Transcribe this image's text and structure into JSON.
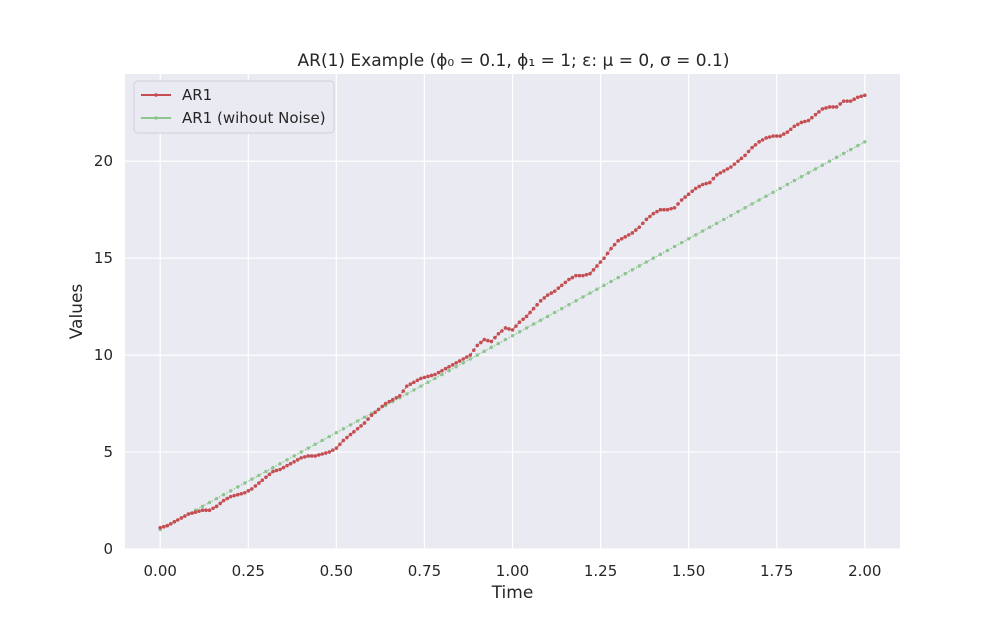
{
  "chart_data": {
    "type": "line",
    "title": "AR(1) Example (ϕ₀ = 0.1, ϕ₁ = 1; ε: μ = 0, σ = 0.1)",
    "xlabel": "Time",
    "ylabel": "Values",
    "xlim": [
      -0.1,
      2.1
    ],
    "ylim": [
      0,
      24.5
    ],
    "xticks": [
      "0.00",
      "0.25",
      "0.50",
      "0.75",
      "1.00",
      "1.25",
      "1.50",
      "1.75",
      "2.00"
    ],
    "yticks": [
      "0",
      "5",
      "10",
      "15",
      "20"
    ],
    "grid": true,
    "legend_position": "top-left",
    "colors": {
      "background": "#eaeaf2",
      "grid": "#ffffff",
      "ar1": "#c44e52",
      "ar1_no_noise": "#8dc58f"
    },
    "series": [
      {
        "name": "AR1",
        "color": "#c44e52",
        "x": [
          0.0,
          0.02,
          0.04,
          0.06,
          0.08,
          0.1,
          0.12,
          0.14,
          0.16,
          0.18,
          0.2,
          0.22,
          0.24,
          0.26,
          0.28,
          0.3,
          0.32,
          0.34,
          0.36,
          0.38,
          0.4,
          0.42,
          0.44,
          0.46,
          0.48,
          0.5,
          0.52,
          0.54,
          0.56,
          0.58,
          0.6,
          0.62,
          0.64,
          0.66,
          0.68,
          0.7,
          0.72,
          0.74,
          0.76,
          0.78,
          0.8,
          0.82,
          0.84,
          0.86,
          0.88,
          0.9,
          0.92,
          0.94,
          0.96,
          0.98,
          1.0,
          1.02,
          1.04,
          1.06,
          1.08,
          1.1,
          1.12,
          1.14,
          1.16,
          1.18,
          1.2,
          1.22,
          1.24,
          1.26,
          1.28,
          1.3,
          1.32,
          1.34,
          1.36,
          1.38,
          1.4,
          1.42,
          1.44,
          1.46,
          1.48,
          1.5,
          1.52,
          1.54,
          1.56,
          1.58,
          1.6,
          1.62,
          1.64,
          1.66,
          1.68,
          1.7,
          1.72,
          1.74,
          1.76,
          1.78,
          1.8,
          1.82,
          1.84,
          1.86,
          1.88,
          1.9,
          1.92,
          1.94,
          1.96,
          1.98,
          2.0
        ],
        "values": [
          1.1,
          1.2,
          1.4,
          1.6,
          1.8,
          1.9,
          2.0,
          2.0,
          2.2,
          2.5,
          2.7,
          2.8,
          2.9,
          3.1,
          3.4,
          3.7,
          4.0,
          4.1,
          4.3,
          4.5,
          4.7,
          4.8,
          4.8,
          4.9,
          5.0,
          5.2,
          5.6,
          5.9,
          6.2,
          6.5,
          6.9,
          7.2,
          7.5,
          7.7,
          7.9,
          8.4,
          8.6,
          8.8,
          8.9,
          9.0,
          9.2,
          9.4,
          9.6,
          9.8,
          10.0,
          10.5,
          10.8,
          10.7,
          11.1,
          11.4,
          11.3,
          11.7,
          12.0,
          12.4,
          12.8,
          13.1,
          13.3,
          13.6,
          13.9,
          14.1,
          14.1,
          14.2,
          14.6,
          15.0,
          15.5,
          15.9,
          16.1,
          16.3,
          16.6,
          17.0,
          17.3,
          17.5,
          17.5,
          17.6,
          18.0,
          18.3,
          18.6,
          18.8,
          18.9,
          19.3,
          19.5,
          19.7,
          20.0,
          20.3,
          20.7,
          21.0,
          21.2,
          21.3,
          21.3,
          21.5,
          21.8,
          22.0,
          22.1,
          22.4,
          22.7,
          22.8,
          22.8,
          23.1,
          23.1,
          23.3,
          23.4
        ]
      },
      {
        "name": "AR1 (wihout Noise)",
        "color": "#8dc58f",
        "x": [
          0.0,
          2.0
        ],
        "values": [
          1.0,
          21.0
        ]
      }
    ]
  }
}
